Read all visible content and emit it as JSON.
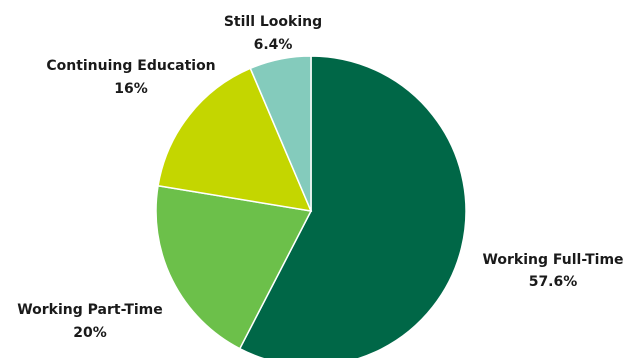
{
  "chart_data": {
    "type": "pie",
    "slices": [
      {
        "label": "Working Full-Time",
        "value": 57.6,
        "value_label": "57.6%",
        "color": "#006747"
      },
      {
        "label": "Working Part-Time",
        "value": 20,
        "value_label": "20%",
        "color": "#6CC04A"
      },
      {
        "label": "Continuing Education",
        "value": 16,
        "value_label": "16%",
        "color": "#C4D600"
      },
      {
        "label": "Still Looking",
        "value": 6.4,
        "value_label": "6.4%",
        "color": "#84CBBC"
      }
    ],
    "start_angle": "12 o'clock",
    "direction": "clockwise"
  }
}
